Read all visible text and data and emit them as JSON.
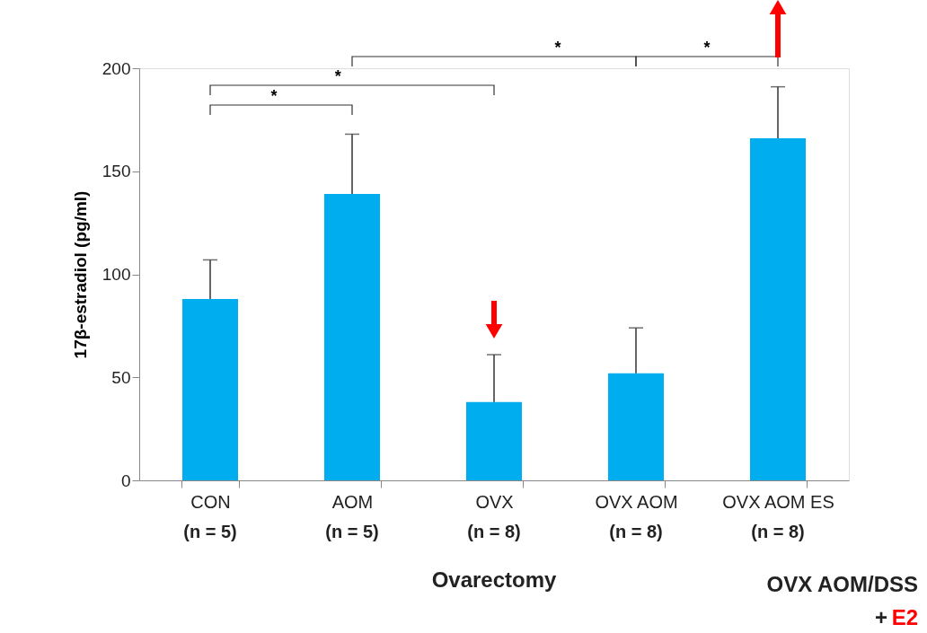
{
  "chart_data": {
    "type": "bar",
    "ylabel": "17β-estradiol (pg/ml)",
    "categories": [
      "CON",
      "AOM",
      "OVX",
      "OVX AOM",
      "OVX AOM ES"
    ],
    "values": [
      88,
      139,
      38,
      52,
      166
    ],
    "errors": [
      [
        88,
        107
      ],
      [
        139,
        168
      ],
      [
        38,
        61
      ],
      [
        52,
        74
      ],
      [
        166,
        191
      ]
    ],
    "color": "#00aeef",
    "ylim": [
      0,
      200
    ],
    "yticks": [
      0,
      50,
      100,
      150,
      200
    ],
    "grid": false,
    "annotations": [
      "(n = 5)",
      "(n = 5)",
      "(n = 8)",
      "(n = 8)",
      "(n = 8)",
      "*",
      "*",
      "*",
      "*",
      "Ovarectomy",
      "OVX AOM/DSS",
      "+",
      "E2"
    ]
  }
}
